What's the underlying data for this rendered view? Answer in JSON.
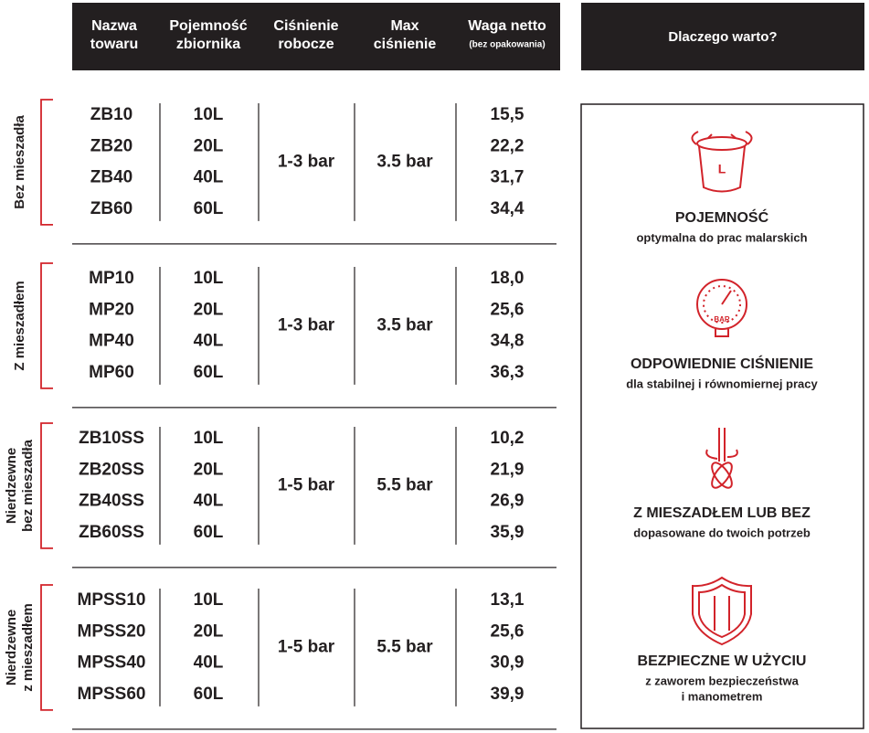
{
  "header": {
    "columns": [
      {
        "lines": [
          "Nazwa",
          "towaru"
        ]
      },
      {
        "lines": [
          "Pojemność",
          "zbiornika"
        ]
      },
      {
        "lines": [
          "Ciśnienie",
          "robocze"
        ]
      },
      {
        "lines": [
          "Max",
          "ciśnienie"
        ]
      },
      {
        "lines": [
          "Waga netto",
          "(bez opakowania)"
        ]
      }
    ],
    "why_title": "Dlaczego warto?"
  },
  "groups": [
    {
      "label": [
        "Bez mieszadła"
      ],
      "pressure": "1-3 bar",
      "max_pressure": "3.5 bar",
      "rows": [
        [
          "ZB10",
          "10L",
          "15,5"
        ],
        [
          "ZB20",
          "20L",
          "22,2"
        ],
        [
          "ZB40",
          "40L",
          "31,7"
        ],
        [
          "ZB60",
          "60L",
          "34,4"
        ]
      ]
    },
    {
      "label": [
        "Z mieszadłem"
      ],
      "pressure": "1-3 bar",
      "max_pressure": "3.5 bar",
      "rows": [
        [
          "MP10",
          "10L",
          "18,0"
        ],
        [
          "MP20",
          "20L",
          "25,6"
        ],
        [
          "MP40",
          "40L",
          "34,8"
        ],
        [
          "MP60",
          "60L",
          "36,3"
        ]
      ]
    },
    {
      "label": [
        "Nierdzewne",
        "bez mieszadła"
      ],
      "pressure": "1-5 bar",
      "max_pressure": "5.5 bar",
      "rows": [
        [
          "ZB10SS",
          "10L",
          "10,2"
        ],
        [
          "ZB20SS",
          "20L",
          "21,9"
        ],
        [
          "ZB40SS",
          "40L",
          "26,9"
        ],
        [
          "ZB60SS",
          "60L",
          "35,9"
        ]
      ]
    },
    {
      "label": [
        "Nierdzewne",
        "z mieszadłem"
      ],
      "pressure": "1-5 bar",
      "max_pressure": "5.5 bar",
      "rows": [
        [
          "MPSS10",
          "10L",
          "13,1"
        ],
        [
          "MPSS20",
          "20L",
          "25,6"
        ],
        [
          "MPSS40",
          "40L",
          "30,9"
        ],
        [
          "MPSS60",
          "60L",
          "39,9"
        ]
      ]
    }
  ],
  "features": [
    {
      "icon_label": "L",
      "title": "POJEMNOŚĆ",
      "text": [
        "optymalna do prac malarskich"
      ]
    },
    {
      "icon_label": "BAR",
      "title": "ODPOWIEDNIE CIŚNIENIE",
      "text": [
        "dla stabilnej i równomiernej pracy"
      ]
    },
    {
      "title": "Z MIESZADŁEM LUB BEZ",
      "text": [
        "dopasowane do twoich potrzeb"
      ]
    },
    {
      "title": "BEZPIECZNE W UŻYCIU",
      "text": [
        "z zaworem bezpieczeństwa",
        "i manometrem"
      ]
    }
  ]
}
